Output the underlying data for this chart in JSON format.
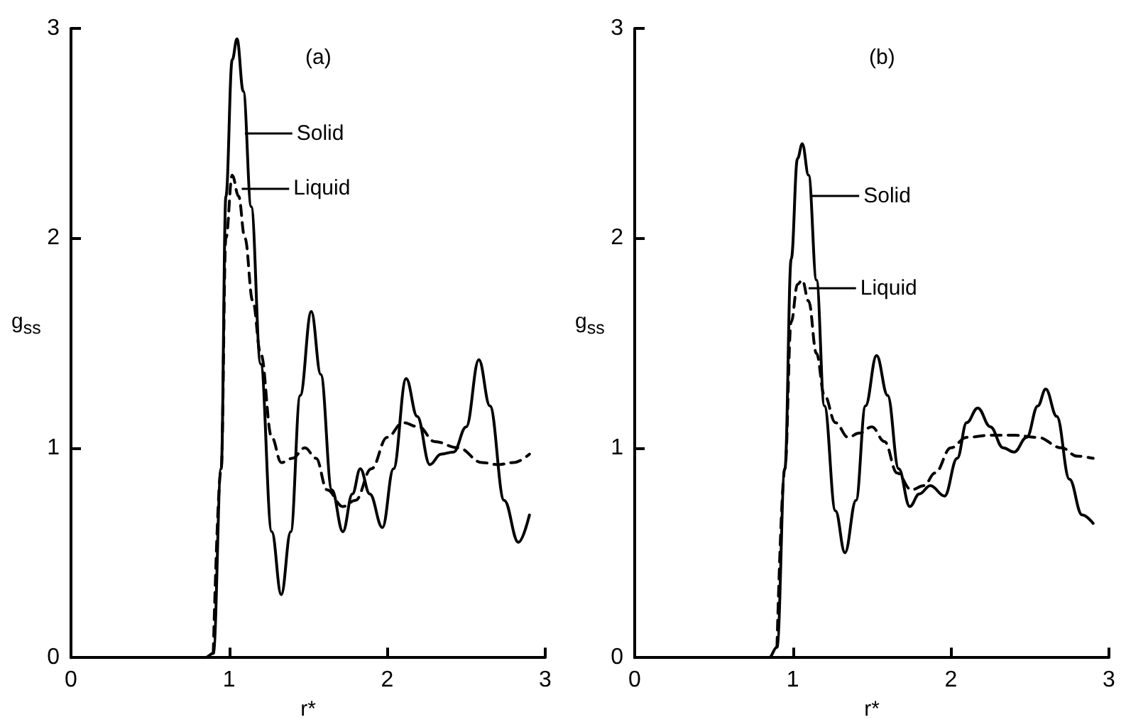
{
  "chart_data": [
    {
      "type": "line",
      "title": "(a)",
      "xlabel": "r*",
      "ylabel": "g$_{ss}$",
      "xlim": [
        0,
        3
      ],
      "xticks": [
        0,
        1,
        2,
        3
      ],
      "ylim": [
        0,
        3
      ],
      "yticks": [
        0,
        1,
        2,
        3
      ],
      "grid": false,
      "marker": "none",
      "series": [
        {
          "color": "#000000",
          "line_style": "solid",
          "x": [
            0,
            0.85,
            0.9,
            0.95,
            0.98,
            1.02,
            1.05,
            1.09,
            1.14,
            1.2,
            1.27,
            1.33,
            1.39,
            1.45,
            1.52,
            1.58,
            1.65,
            1.72,
            1.78,
            1.83,
            1.89,
            1.97,
            2.04,
            2.12,
            2.19,
            2.27,
            2.34,
            2.42,
            2.5,
            2.58,
            2.65,
            2.74,
            2.83,
            2.9
          ],
          "values": [
            0,
            0,
            0.02,
            0.9,
            2.2,
            2.85,
            2.95,
            2.7,
            2.15,
            1.4,
            0.6,
            0.3,
            0.6,
            1.25,
            1.65,
            1.35,
            0.8,
            0.6,
            0.78,
            0.9,
            0.78,
            0.62,
            0.9,
            1.33,
            1.15,
            0.92,
            0.97,
            0.98,
            1.1,
            1.42,
            1.2,
            0.75,
            0.55,
            0.68
          ]
        },
        {
          "color": "#000000",
          "line_style": "dashed",
          "x": [
            0.9,
            0.95,
            0.98,
            1.02,
            1.06,
            1.1,
            1.15,
            1.2,
            1.27,
            1.33,
            1.4,
            1.48,
            1.55,
            1.62,
            1.72,
            1.8,
            1.9,
            2.0,
            2.1,
            2.2,
            2.3,
            2.45,
            2.6,
            2.7,
            2.8,
            2.9
          ],
          "values": [
            0.02,
            0.9,
            2.0,
            2.3,
            2.2,
            2.0,
            1.7,
            1.45,
            1.05,
            0.93,
            0.95,
            1.0,
            0.95,
            0.8,
            0.72,
            0.75,
            0.9,
            1.05,
            1.12,
            1.1,
            1.03,
            1.0,
            0.93,
            0.92,
            0.93,
            0.97
          ]
        }
      ],
      "annotations": [
        {
          "text": "Solid",
          "x": 1.1,
          "y": 2.5
        },
        {
          "text": "Liquid",
          "x": 1.08,
          "y": 2.24
        }
      ]
    },
    {
      "type": "line",
      "title": "(b)",
      "xlabel": "r*",
      "ylabel": "g$_{ss}$",
      "xlim": [
        0,
        3
      ],
      "xticks": [
        0,
        1,
        2,
        3
      ],
      "ylim": [
        0,
        3
      ],
      "yticks": [
        0,
        1,
        2,
        3
      ],
      "grid": false,
      "marker": "none",
      "series": [
        {
          "color": "#000000",
          "line_style": "solid",
          "x": [
            0,
            0.85,
            0.9,
            0.95,
            0.99,
            1.03,
            1.06,
            1.1,
            1.15,
            1.2,
            1.27,
            1.33,
            1.4,
            1.46,
            1.53,
            1.6,
            1.67,
            1.74,
            1.8,
            1.87,
            1.96,
            2.04,
            2.1,
            2.17,
            2.25,
            2.33,
            2.4,
            2.48,
            2.55,
            2.6,
            2.67,
            2.75,
            2.83,
            2.9
          ],
          "values": [
            0,
            0,
            0.05,
            0.9,
            1.9,
            2.38,
            2.45,
            2.3,
            1.8,
            1.2,
            0.7,
            0.5,
            0.75,
            1.2,
            1.44,
            1.25,
            0.9,
            0.72,
            0.78,
            0.82,
            0.77,
            0.95,
            1.12,
            1.19,
            1.1,
            1.0,
            0.98,
            1.05,
            1.2,
            1.28,
            1.15,
            0.85,
            0.68,
            0.64
          ]
        },
        {
          "color": "#000000",
          "line_style": "dashed",
          "x": [
            0.9,
            0.95,
            0.99,
            1.03,
            1.06,
            1.1,
            1.15,
            1.2,
            1.27,
            1.35,
            1.42,
            1.5,
            1.58,
            1.66,
            1.75,
            1.83,
            1.9,
            2.0,
            2.1,
            2.25,
            2.4,
            2.55,
            2.7,
            2.8,
            2.9
          ],
          "values": [
            0.05,
            0.9,
            1.6,
            1.78,
            1.8,
            1.7,
            1.45,
            1.25,
            1.12,
            1.05,
            1.07,
            1.1,
            1.03,
            0.88,
            0.8,
            0.82,
            0.88,
            1.0,
            1.05,
            1.06,
            1.06,
            1.05,
            1.0,
            0.96,
            0.95
          ]
        }
      ],
      "annotations": [
        {
          "text": "Solid",
          "x": 1.12,
          "y": 2.2
        },
        {
          "text": "Liquid",
          "x": 1.1,
          "y": 1.76
        }
      ]
    }
  ]
}
